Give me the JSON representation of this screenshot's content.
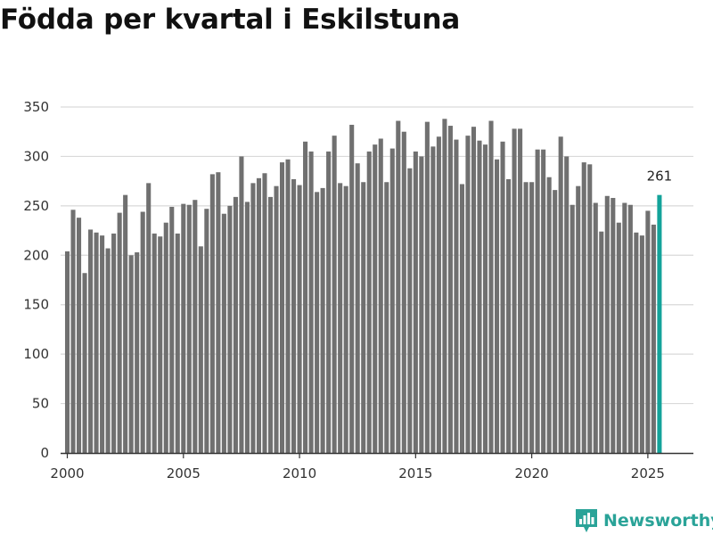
{
  "title": "Födda per kvartal i Eskilstuna",
  "brand": {
    "name": "Newsworthy",
    "icon": "newsworthy-logo-icon"
  },
  "colors": {
    "bar": "#707070",
    "highlight": "#13a39a",
    "grid": "#d9d9d9",
    "axis": "#333333",
    "brand": "#2aa398"
  },
  "chart_data": {
    "type": "bar",
    "title": "Födda per kvartal i Eskilstuna",
    "xlabel": "",
    "ylabel": "",
    "ylim": [
      0,
      350
    ],
    "yticks": [
      0,
      50,
      100,
      150,
      200,
      250,
      300,
      350
    ],
    "xlim": [
      1999.75,
      2027.0
    ],
    "xticks": [
      2000,
      2005,
      2010,
      2015,
      2020,
      2025
    ],
    "xtick_labels": [
      "2000",
      "2005",
      "2010",
      "2015",
      "2020",
      "2025"
    ],
    "grid": true,
    "highlight_last": true,
    "last_label": "261",
    "x": [
      "2000Q1",
      "2000Q2",
      "2000Q3",
      "2000Q4",
      "2001Q1",
      "2001Q2",
      "2001Q3",
      "2001Q4",
      "2002Q1",
      "2002Q2",
      "2002Q3",
      "2002Q4",
      "2003Q1",
      "2003Q2",
      "2003Q3",
      "2003Q4",
      "2004Q1",
      "2004Q2",
      "2004Q3",
      "2004Q4",
      "2005Q1",
      "2005Q2",
      "2005Q3",
      "2005Q4",
      "2006Q1",
      "2006Q2",
      "2006Q3",
      "2006Q4",
      "2007Q1",
      "2007Q2",
      "2007Q3",
      "2007Q4",
      "2008Q1",
      "2008Q2",
      "2008Q3",
      "2008Q4",
      "2009Q1",
      "2009Q2",
      "2009Q3",
      "2009Q4",
      "2010Q1",
      "2010Q2",
      "2010Q3",
      "2010Q4",
      "2011Q1",
      "2011Q2",
      "2011Q3",
      "2011Q4",
      "2012Q1",
      "2012Q2",
      "2012Q3",
      "2012Q4",
      "2013Q1",
      "2013Q2",
      "2013Q3",
      "2013Q4",
      "2014Q1",
      "2014Q2",
      "2014Q3",
      "2014Q4",
      "2015Q1",
      "2015Q2",
      "2015Q3",
      "2015Q4",
      "2016Q1",
      "2016Q2",
      "2016Q3",
      "2016Q4",
      "2017Q1",
      "2017Q2",
      "2017Q3",
      "2017Q4",
      "2018Q1",
      "2018Q2",
      "2018Q3",
      "2018Q4",
      "2019Q1",
      "2019Q2",
      "2019Q3",
      "2019Q4",
      "2020Q1",
      "2020Q2",
      "2020Q3",
      "2020Q4",
      "2021Q1",
      "2021Q2",
      "2021Q3",
      "2021Q4",
      "2022Q1",
      "2022Q2",
      "2022Q3",
      "2022Q4",
      "2023Q1",
      "2023Q2",
      "2023Q3",
      "2023Q4",
      "2024Q1",
      "2024Q2",
      "2024Q3",
      "2024Q4",
      "2025Q1",
      "2025Q2",
      "2025Q3"
    ],
    "values": [
      204,
      246,
      238,
      182,
      226,
      223,
      220,
      207,
      222,
      243,
      261,
      200,
      203,
      244,
      273,
      222,
      219,
      233,
      249,
      222,
      252,
      251,
      256,
      209,
      247,
      282,
      284,
      242,
      250,
      259,
      300,
      254,
      273,
      278,
      283,
      259,
      270,
      294,
      297,
      277,
      271,
      315,
      305,
      264,
      268,
      305,
      321,
      273,
      270,
      332,
      293,
      274,
      305,
      312,
      318,
      274,
      308,
      336,
      325,
      288,
      305,
      300,
      335,
      310,
      320,
      338,
      331,
      317,
      272,
      321,
      330,
      316,
      312,
      336,
      297,
      315,
      277,
      328,
      328,
      274,
      274,
      307,
      307,
      279,
      266,
      320,
      300,
      251,
      270,
      294,
      292,
      253,
      224,
      260,
      258,
      233,
      253,
      251,
      223,
      220,
      245,
      231,
      261
    ]
  }
}
